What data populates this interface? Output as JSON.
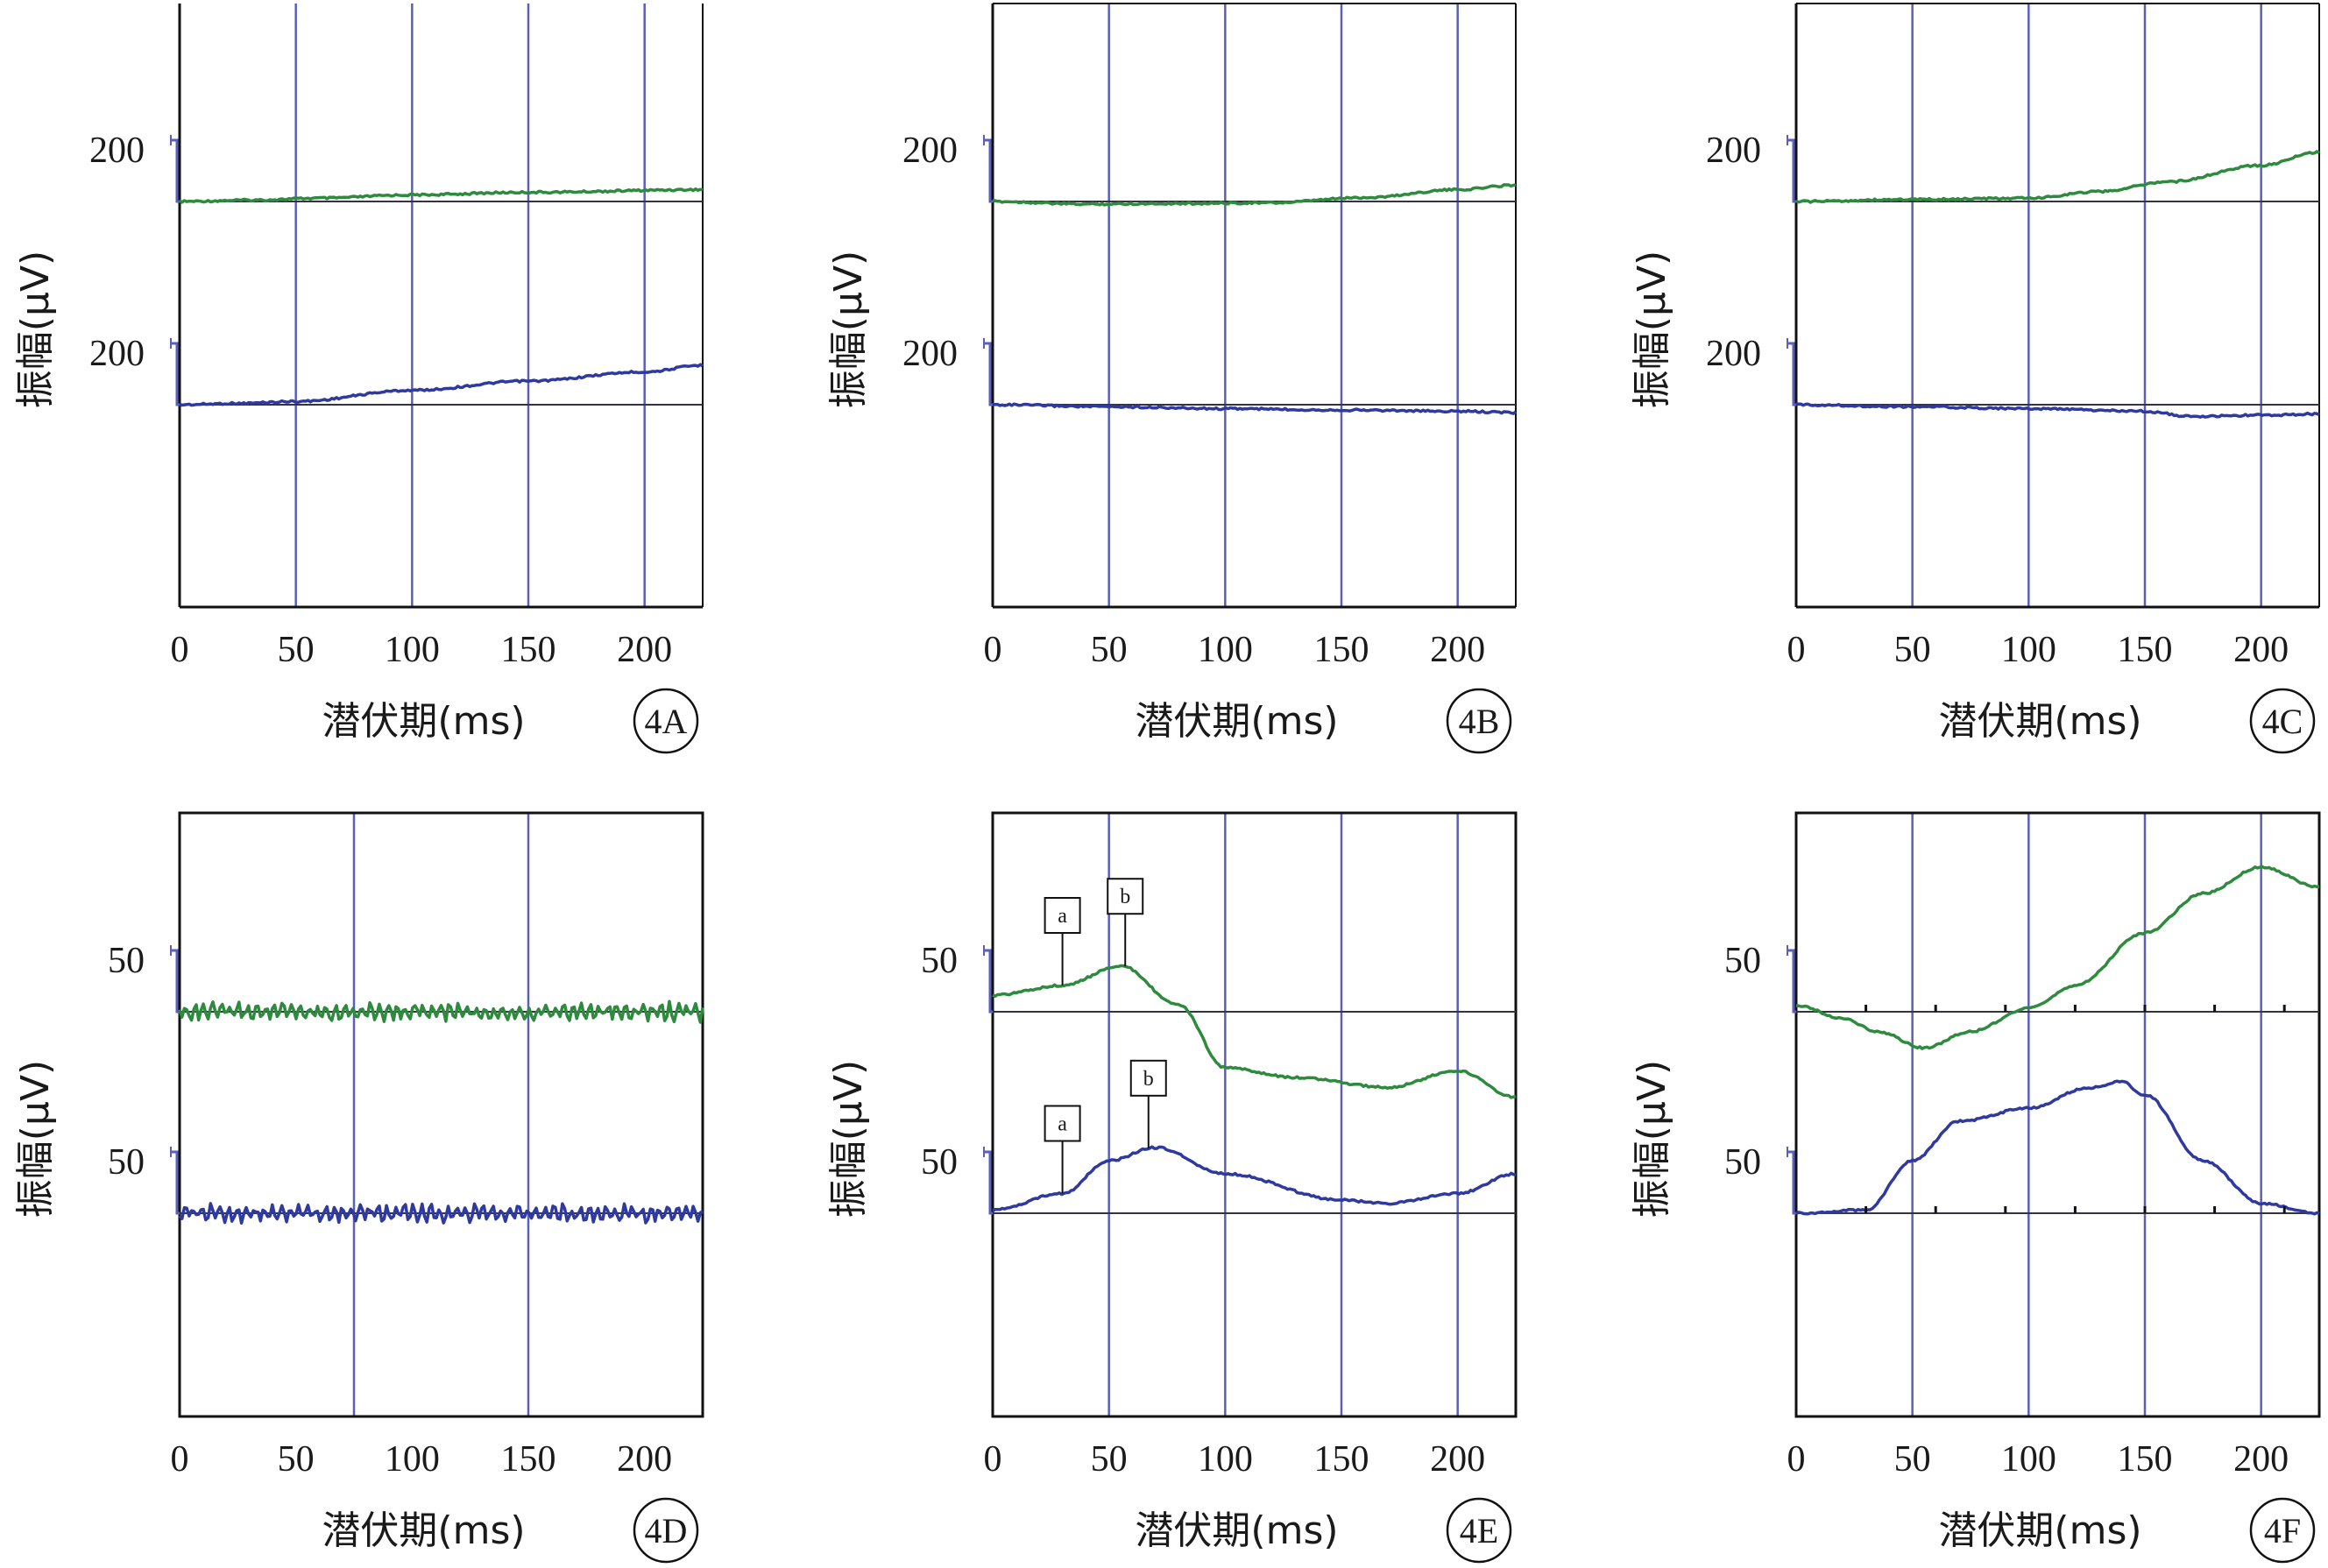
{
  "colors": {
    "upper_trace": "#2e8b3e",
    "lower_trace": "#2f3aa0",
    "gridline": "#5a5fb8",
    "axis": "#111111"
  },
  "common": {
    "ylabel": "振幅(μV)",
    "xlabel": "潜伏期(ms)",
    "xticks": [
      "0",
      "50",
      "100",
      "150",
      "200"
    ]
  },
  "chart_data": [
    {
      "type": "line",
      "panel": "4A",
      "amplitude_label": "200",
      "xlim": [
        0,
        225
      ],
      "vlines_ms": [
        50,
        100,
        150,
        200
      ],
      "series": [
        {
          "x": [
            0,
            30,
            60,
            100,
            150,
            225
          ],
          "y": [
            0,
            0.02,
            0.05,
            0.1,
            0.14,
            0.18
          ]
        },
        {
          "x": [
            0,
            25,
            50,
            100,
            150,
            200,
            225
          ],
          "y": [
            0,
            0.02,
            0.05,
            0.22,
            0.36,
            0.5,
            0.6
          ]
        }
      ]
    },
    {
      "type": "line",
      "panel": "4B",
      "amplitude_label": "200",
      "xlim": [
        0,
        225
      ],
      "vlines_ms": [
        50,
        100,
        150,
        200
      ],
      "series": [
        {
          "x": [
            0,
            40,
            80,
            120,
            160,
            200,
            225
          ],
          "y": [
            0,
            -0.04,
            -0.03,
            -0.02,
            0.06,
            0.18,
            0.25
          ]
        },
        {
          "x": [
            0,
            50,
            100,
            150,
            200,
            225
          ],
          "y": [
            0,
            -0.03,
            -0.06,
            -0.08,
            -0.1,
            -0.12
          ]
        }
      ]
    },
    {
      "type": "line",
      "panel": "4C",
      "amplitude_label": "200",
      "xlim": [
        0,
        225
      ],
      "vlines_ms": [
        50,
        100,
        150,
        200
      ],
      "series": [
        {
          "x": [
            0,
            50,
            100,
            130,
            160,
            200,
            225
          ],
          "y": [
            0,
            0.03,
            0.05,
            0.15,
            0.3,
            0.55,
            0.75
          ]
        },
        {
          "x": [
            0,
            50,
            100,
            150,
            170,
            200,
            225
          ],
          "y": [
            0,
            -0.03,
            -0.06,
            -0.1,
            -0.18,
            -0.16,
            -0.14
          ]
        }
      ]
    },
    {
      "type": "line",
      "panel": "4D",
      "amplitude_label": "50",
      "xlim": [
        0,
        225
      ],
      "vlines_ms": [
        75,
        150
      ],
      "series": [
        {
          "x": [
            0,
            225
          ],
          "y": [
            0,
            0
          ]
        },
        {
          "x": [
            0,
            225
          ],
          "y": [
            0,
            0
          ]
        }
      ]
    },
    {
      "type": "line",
      "panel": "4E",
      "amplitude_label": "50",
      "xlim": [
        0,
        225
      ],
      "vlines_ms": [
        50,
        100,
        150,
        200
      ],
      "series": [
        {
          "x": [
            0,
            30,
            55,
            80,
            100,
            130,
            170,
            200,
            225
          ],
          "y": [
            0.25,
            0.4,
            0.7,
            0.1,
            -0.85,
            -1.0,
            -1.15,
            -0.9,
            -1.3
          ],
          "markers": [
            {
              "label": "a",
              "x": 30
            },
            {
              "label": "b",
              "x": 57
            }
          ]
        },
        {
          "x": [
            0,
            30,
            50,
            70,
            100,
            150,
            170,
            200,
            225
          ],
          "y": [
            0.05,
            0.3,
            0.8,
            1.0,
            0.6,
            0.2,
            0.15,
            0.3,
            0.6
          ],
          "markers": [
            {
              "label": "a",
              "x": 30
            },
            {
              "label": "b",
              "x": 67
            }
          ]
        }
      ]
    },
    {
      "type": "line",
      "panel": "4F",
      "amplitude_label": "50",
      "xlim": [
        0,
        225
      ],
      "vlines_ms": [
        50,
        100,
        150,
        200
      ],
      "series": [
        {
          "x": [
            0,
            20,
            35,
            55,
            75,
            100,
            120,
            150,
            175,
            200,
            225
          ],
          "y": [
            0.1,
            -0.1,
            -0.3,
            -0.55,
            -0.3,
            0.05,
            0.4,
            1.2,
            1.8,
            2.2,
            1.9
          ]
        },
        {
          "x": [
            0,
            30,
            50,
            70,
            100,
            125,
            140,
            150,
            175,
            200,
            225
          ],
          "y": [
            0,
            0.05,
            0.8,
            1.4,
            1.6,
            1.9,
            2.0,
            1.8,
            0.8,
            0.15,
            0
          ]
        }
      ]
    }
  ]
}
